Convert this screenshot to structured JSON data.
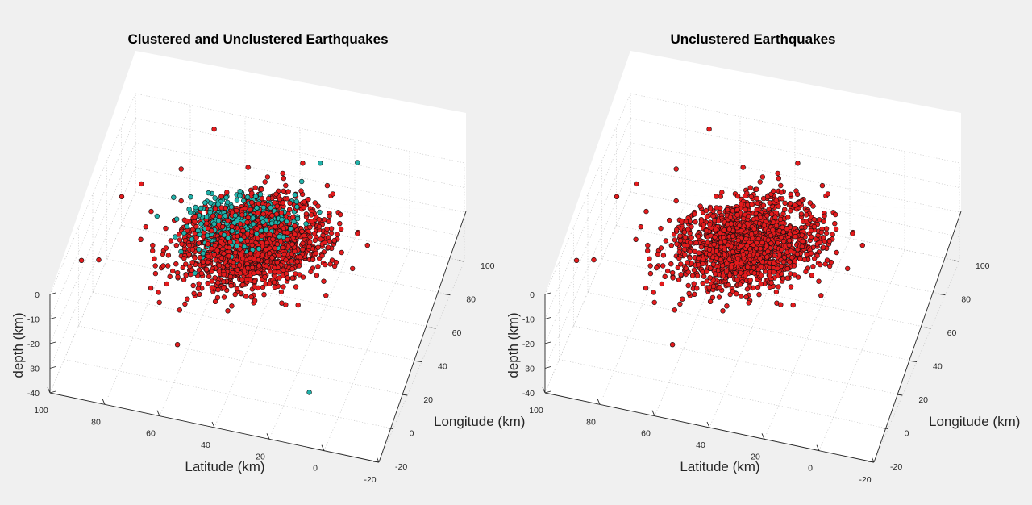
{
  "chart_data": [
    {
      "type": "scatter3d",
      "title": "Clustered and Unclustered Earthquakes",
      "xlabel": "Latitude (km)",
      "ylabel": "Longitude (km)",
      "zlabel": "depth (km)",
      "xlim": [
        -20,
        100
      ],
      "ylim": [
        -20,
        100
      ],
      "zlim": [
        -40,
        0
      ],
      "xticks": [
        "100",
        "80",
        "60",
        "40",
        "20",
        "0",
        "-20"
      ],
      "yticks": [
        "-20",
        "0",
        "20",
        "40",
        "60",
        "80",
        "100"
      ],
      "zticks": [
        "0",
        "-10",
        "-20",
        "-30",
        "-40"
      ],
      "grid": true,
      "series": [
        {
          "color": "#e41a1c",
          "approx_count": 1600
        },
        {
          "color": "#20b2aa",
          "approx_count": 500
        }
      ],
      "outliers": [
        {
          "x": 95,
          "y": 5,
          "z": -2,
          "series": 0
        },
        {
          "x": 90,
          "y": 10,
          "z": -4,
          "series": 0
        },
        {
          "x": 60,
          "y": 5,
          "z": -28,
          "series": 0
        },
        {
          "x": 8,
          "y": -10,
          "z": -25,
          "series": 1
        },
        {
          "x": 30,
          "y": 90,
          "z": -5,
          "series": 1
        },
        {
          "x": 18,
          "y": 96,
          "z": -6,
          "series": 1
        },
        {
          "x": 75,
          "y": 68,
          "z": -3,
          "series": 0
        },
        {
          "x": 70,
          "y": 95,
          "z": -4,
          "series": 0
        },
        {
          "x": 92,
          "y": 50,
          "z": -6,
          "series": 0
        },
        {
          "x": 88,
          "y": 62,
          "z": -8,
          "series": 0
        }
      ]
    },
    {
      "type": "scatter3d",
      "title": "Unclustered Earthquakes",
      "xlabel": "Latitude (km)",
      "ylabel": "Longitude (km)",
      "zlabel": "depth (km)",
      "xlim": [
        -20,
        100
      ],
      "ylim": [
        -20,
        100
      ],
      "zlim": [
        -40,
        0
      ],
      "xticks": [
        "100",
        "80",
        "60",
        "40",
        "20",
        "0",
        "-20"
      ],
      "yticks": [
        "-20",
        "0",
        "20",
        "40",
        "60",
        "80",
        "100"
      ],
      "zticks": [
        "0",
        "-10",
        "-20",
        "-30",
        "-40"
      ],
      "grid": true,
      "series": [
        {
          "color": "#e41a1c",
          "approx_count": 1600
        }
      ],
      "outliers": [
        {
          "x": 95,
          "y": 5,
          "z": -2,
          "series": 0
        },
        {
          "x": 90,
          "y": 10,
          "z": -4,
          "series": 0
        },
        {
          "x": 60,
          "y": 5,
          "z": -28,
          "series": 0
        },
        {
          "x": 75,
          "y": 68,
          "z": -3,
          "series": 0
        },
        {
          "x": 70,
          "y": 95,
          "z": -4,
          "series": 0
        },
        {
          "x": 92,
          "y": 50,
          "z": -6,
          "series": 0
        },
        {
          "x": 88,
          "y": 62,
          "z": -8,
          "series": 0
        }
      ]
    }
  ]
}
